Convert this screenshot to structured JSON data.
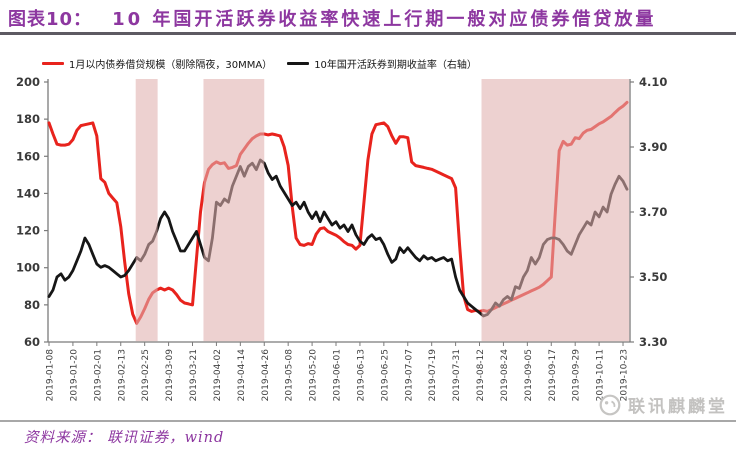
{
  "header": {
    "label": "图表10：",
    "title": "10 年国开活跃券收益率快速上行期一般对应债券借贷放量"
  },
  "legend": [
    {
      "name": "1月以内债券借贷规模（剔除隔夜，30MMA）",
      "color": "#e8231d"
    },
    {
      "name": "10年国开活跃券到期收益率（右轴）",
      "color": "#161616"
    }
  ],
  "footer": {
    "source": "资料来源： 联讯证券，wind",
    "watermark": "联讯麒麟堂"
  },
  "chart_data": {
    "type": "line",
    "title": "10 年国开活跃券收益率快速上行期一般对应债券借贷放量",
    "x_tick_labels": [
      "2019-01-08",
      "2019-01-20",
      "2019-02-01",
      "2019-02-13",
      "2019-02-25",
      "2019-03-09",
      "2019-03-21",
      "2019-04-02",
      "2019-04-14",
      "2019-04-26",
      "2019-05-08",
      "2019-05-20",
      "2019-06-01",
      "2019-06-13",
      "2019-06-25",
      "2019-07-07",
      "2019-07-19",
      "2019-07-31",
      "2019-08-12",
      "2019-08-24",
      "2019-09-05",
      "2019-09-17",
      "2019-09-29",
      "2019-10-11",
      "2019-10-23"
    ],
    "x_tick_interval_days": 12,
    "total_days": 291,
    "grid": false,
    "legend_position": "top",
    "left_axis": {
      "min": 60,
      "max": 200,
      "ticks": [
        60,
        80,
        100,
        120,
        140,
        160,
        180,
        200
      ]
    },
    "right_axis": {
      "min": 3.3,
      "max": 4.1,
      "ticks": [
        "3.30",
        "3.50",
        "3.70",
        "3.90",
        "4.10"
      ]
    },
    "highlight_bands_days": [
      [
        43.5,
        54.5
      ],
      [
        77.5,
        108
      ],
      [
        217,
        292
      ]
    ],
    "band_color": "rgba(224,176,174,0.58)",
    "axis_color": "#7b7b7b",
    "series": [
      {
        "name": "1月以内债券借贷规模（剔除隔夜，30MMA）",
        "axis": "left",
        "color": "#e8231d",
        "width": 3,
        "start_day": 0,
        "step_days": 2,
        "values": [
          178,
          172,
          166.5,
          166,
          166,
          166.5,
          169,
          174,
          176.5,
          177,
          177.5,
          178,
          171,
          148,
          146,
          140,
          137.5,
          135,
          122,
          103,
          86,
          75,
          70,
          73.5,
          78,
          83,
          86.5,
          88,
          89,
          88,
          89,
          88,
          85.5,
          82.5,
          81,
          80.5,
          80,
          105,
          130,
          146,
          153,
          155.5,
          157,
          156,
          156.5,
          153.5,
          154,
          155,
          161,
          164,
          167,
          169.5,
          171,
          172,
          172,
          171.5,
          172,
          171.5,
          171,
          165,
          155,
          133,
          116,
          112.5,
          112,
          113,
          112.5,
          118,
          121,
          121.5,
          119.5,
          118.5,
          117.5,
          116,
          114,
          112.5,
          112,
          110,
          112,
          135,
          158,
          172,
          177,
          177.5,
          178,
          176,
          171,
          167,
          170.5,
          170.5,
          170,
          157,
          155,
          154.5,
          154,
          153.5,
          153,
          152,
          151,
          150,
          149,
          148,
          143,
          112,
          85,
          77.5,
          76.5,
          77,
          76.5,
          77,
          76.5,
          77.5,
          78.5,
          79.5,
          80.5,
          81.5,
          82.5,
          83.5,
          84.5,
          85.5,
          86.5,
          87.5,
          88.5,
          89.5,
          91,
          93,
          95,
          130,
          163,
          168,
          166,
          166.5,
          170,
          169.5,
          172.5,
          174,
          174.5,
          176,
          177.5,
          178.5,
          180,
          181.5,
          183.5,
          185.5,
          187,
          189
        ]
      },
      {
        "name": "10年国开活跃券到期收益率（右轴）",
        "axis": "right",
        "color": "#161616",
        "width": 2.8,
        "start_day": 0,
        "step_days": 2,
        "values": [
          3.44,
          3.46,
          3.5,
          3.51,
          3.49,
          3.5,
          3.52,
          3.55,
          3.58,
          3.62,
          3.6,
          3.57,
          3.54,
          3.53,
          3.535,
          3.53,
          3.52,
          3.51,
          3.5,
          3.505,
          3.52,
          3.54,
          3.56,
          3.55,
          3.57,
          3.6,
          3.61,
          3.64,
          3.68,
          3.7,
          3.68,
          3.64,
          3.61,
          3.58,
          3.58,
          3.6,
          3.62,
          3.64,
          3.6,
          3.56,
          3.55,
          3.62,
          3.73,
          3.72,
          3.74,
          3.73,
          3.78,
          3.81,
          3.84,
          3.81,
          3.84,
          3.85,
          3.83,
          3.86,
          3.85,
          3.82,
          3.8,
          3.81,
          3.78,
          3.76,
          3.74,
          3.72,
          3.73,
          3.71,
          3.73,
          3.7,
          3.68,
          3.7,
          3.67,
          3.7,
          3.68,
          3.66,
          3.67,
          3.65,
          3.66,
          3.64,
          3.66,
          3.63,
          3.61,
          3.6,
          3.62,
          3.63,
          3.615,
          3.62,
          3.6,
          3.57,
          3.545,
          3.555,
          3.59,
          3.575,
          3.59,
          3.575,
          3.56,
          3.55,
          3.565,
          3.555,
          3.56,
          3.55,
          3.555,
          3.56,
          3.55,
          3.555,
          3.5,
          3.46,
          3.44,
          3.42,
          3.41,
          3.4,
          3.39,
          3.38,
          3.385,
          3.4,
          3.42,
          3.41,
          3.43,
          3.44,
          3.43,
          3.47,
          3.465,
          3.5,
          3.52,
          3.56,
          3.54,
          3.56,
          3.6,
          3.615,
          3.62,
          3.62,
          3.615,
          3.6,
          3.58,
          3.57,
          3.6,
          3.63,
          3.65,
          3.67,
          3.66,
          3.7,
          3.685,
          3.715,
          3.7,
          3.755,
          3.785,
          3.81,
          3.795,
          3.77
        ]
      }
    ]
  }
}
